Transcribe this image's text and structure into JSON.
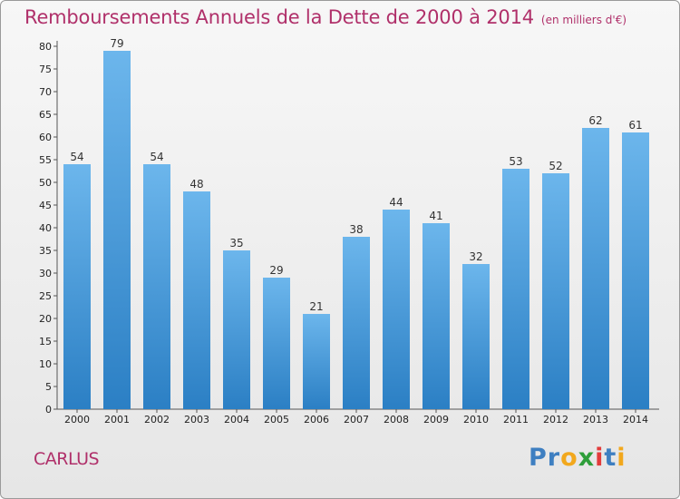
{
  "chart_data": {
    "type": "bar",
    "title": "Remboursements Annuels de la Dette de 2000 à 2014",
    "subtitle": "(en milliers d'€)",
    "xlabel": "",
    "ylabel": "",
    "categories": [
      "2000",
      "2001",
      "2002",
      "2003",
      "2004",
      "2005",
      "2006",
      "2007",
      "2008",
      "2009",
      "2010",
      "2011",
      "2012",
      "2013",
      "2014"
    ],
    "values": [
      54,
      79,
      54,
      48,
      35,
      29,
      21,
      38,
      44,
      41,
      32,
      53,
      52,
      62,
      61
    ],
    "ylim": [
      0,
      80
    ],
    "yticks": [
      0,
      5,
      10,
      15,
      20,
      25,
      30,
      35,
      40,
      45,
      50,
      55,
      60,
      65,
      70,
      75,
      80
    ],
    "grid": false,
    "legend": "none",
    "bar_color_top": "#6cb6ec",
    "bar_color_bottom": "#2b7fc4"
  },
  "commune": "CARLUS",
  "logo": {
    "letters": [
      "P",
      "r",
      "o",
      "x",
      "i",
      "t",
      "i"
    ],
    "colors": [
      "#3e7fc1",
      "#3e7fc1",
      "#f2a81d",
      "#2e9e3a",
      "#e23b3b",
      "#3e7fc1",
      "#f2a81d"
    ]
  },
  "colors": {
    "title": "#b0306a",
    "axis": "#555555"
  }
}
